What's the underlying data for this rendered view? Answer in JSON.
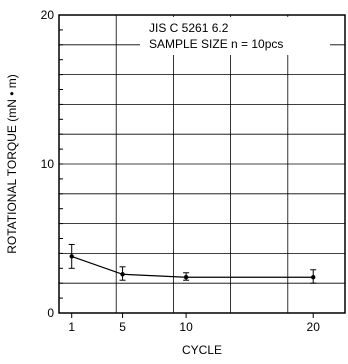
{
  "chart_data": {
    "type": "line",
    "title": "",
    "annotation_lines": [
      "JIS  C  5261  6.2",
      "SAMPLE  SIZE  n = 10pcs"
    ],
    "xlabel": "CYCLE",
    "ylabel": "ROTATIONAL TORQUE (mN • m)",
    "xlim": [
      0,
      22.5
    ],
    "ylim": [
      0,
      20
    ],
    "x_ticks": [
      1,
      5,
      10,
      20
    ],
    "y_ticks": [
      0,
      10,
      20
    ],
    "grid": true,
    "series": [
      {
        "x": [
          1,
          5,
          10,
          20
        ],
        "y": [
          3.8,
          2.6,
          2.4,
          2.4
        ],
        "y_err_low": [
          3.0,
          2.2,
          2.2,
          2.0
        ],
        "y_err_high": [
          4.6,
          3.1,
          2.7,
          2.9
        ]
      }
    ],
    "colors": {
      "line": "#000000",
      "grid": "#000000",
      "background": "#ffffff"
    }
  }
}
